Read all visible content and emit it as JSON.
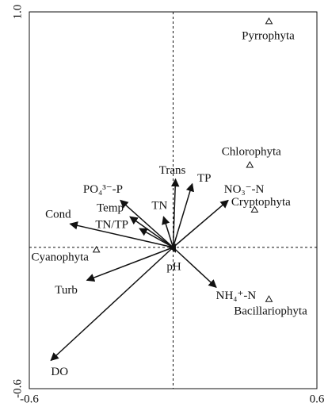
{
  "chart_data": {
    "type": "biplot",
    "xlim": [
      -0.6,
      0.6
    ],
    "ylim": [
      -0.6,
      1.0
    ],
    "xticks": [
      -0.6,
      0.6
    ],
    "yticks": [
      -0.6,
      {
        "value": 1.0,
        "label": "1.0"
      }
    ],
    "arrows": {
      "names": [
        "Cond",
        "Temp",
        "TN/TP",
        "PO₄³⁻-P",
        "TN",
        "Trans",
        "TP",
        "NO₃⁻-N",
        "NH₄⁺-N",
        "pH",
        "Turb",
        "DO"
      ],
      "x": [
        -0.43,
        -0.18,
        -0.14,
        -0.22,
        -0.04,
        0.01,
        0.08,
        0.23,
        0.18,
        0.01,
        -0.36,
        -0.51
      ],
      "y": [
        0.1,
        0.13,
        0.08,
        0.2,
        0.13,
        0.29,
        0.27,
        0.2,
        -0.17,
        -0.02,
        -0.14,
        -0.48
      ]
    },
    "species": {
      "names": [
        "Pyrrophyta",
        "Chlorophyta",
        "Cryptophyta",
        "Bacillariophyta",
        "Cyanophyta"
      ],
      "x": [
        0.4,
        0.32,
        0.34,
        0.4,
        -0.32
      ],
      "y": [
        0.96,
        0.35,
        0.16,
        -0.22,
        -0.01
      ]
    }
  }
}
